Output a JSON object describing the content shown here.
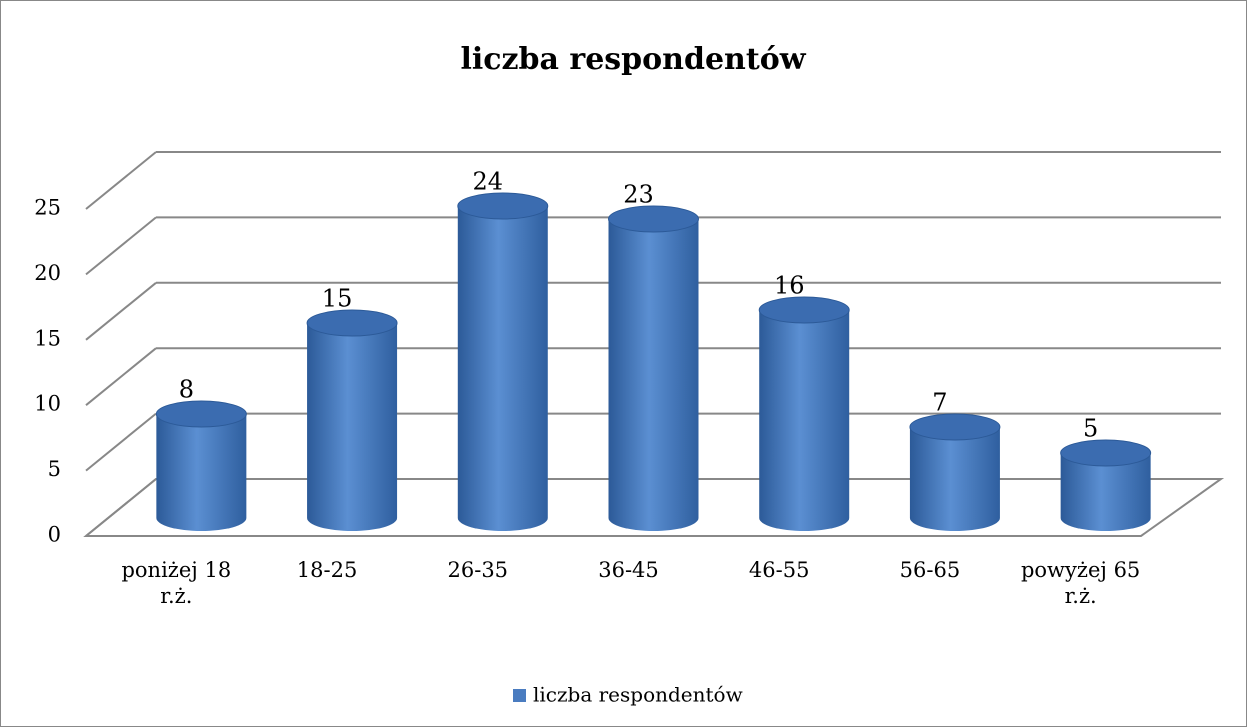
{
  "chart_data": {
    "type": "bar3d",
    "title": "liczba respondentów",
    "categories": [
      "poniżej 18 r.ż.",
      "18-25",
      "26-35",
      "36-45",
      "46-55",
      "56-65",
      "powyżej 65 r.ż."
    ],
    "series": [
      {
        "name": "liczba respondentów",
        "color": "#4a7cc0",
        "values": [
          8,
          15,
          24,
          23,
          16,
          7,
          5
        ]
      }
    ],
    "ylim": [
      0,
      25
    ],
    "yticks": [
      0,
      5,
      10,
      15,
      20,
      25
    ],
    "grid": true,
    "legend": "bottom"
  }
}
